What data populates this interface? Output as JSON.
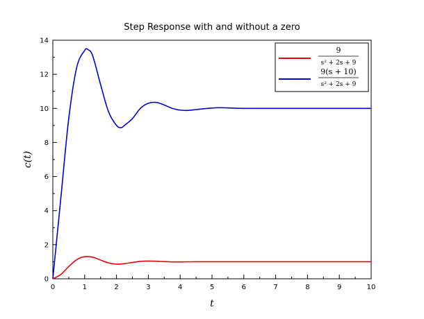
{
  "chart_data": {
    "type": "line",
    "title": "Step Response with and without a zero",
    "xlabel": "t",
    "ylabel": "c(t)",
    "xlim": [
      0,
      10
    ],
    "ylim": [
      0,
      14
    ],
    "xticks": [
      "0",
      "1",
      "2",
      "3",
      "4",
      "5",
      "6",
      "7",
      "8",
      "9",
      "10"
    ],
    "yticks": [
      "0",
      "2",
      "4",
      "6",
      "8",
      "10",
      "12",
      "14"
    ],
    "grid": false,
    "legend_position": "top-right",
    "series": [
      {
        "name": "9 / (s^2 + 2s + 9)",
        "name_numerator": "9",
        "name_denominator": "s² + 2s + 9",
        "color": "#e8000b",
        "x": [
          0,
          0.25,
          0.5,
          0.75,
          1.0,
          1.25,
          1.5,
          1.75,
          2.0,
          2.25,
          2.5,
          2.75,
          3.0,
          3.25,
          3.5,
          3.75,
          4.0,
          4.5,
          5.0,
          5.5,
          6.0,
          7.0,
          8.0,
          9.0,
          10.0
        ],
        "y": [
          0,
          0.25,
          0.72,
          1.12,
          1.3,
          1.27,
          1.1,
          0.93,
          0.86,
          0.89,
          0.96,
          1.02,
          1.04,
          1.03,
          1.01,
          0.99,
          0.99,
          1.0,
          1.0,
          1.0,
          1.0,
          1.0,
          1.0,
          1.0,
          1.0
        ]
      },
      {
        "name": "9(s+10) / (s^2 + 2s + 9)",
        "name_numerator": "9(s + 10)",
        "name_denominator": "s² + 2s + 9",
        "color": "#0000d8",
        "x": [
          0,
          0.25,
          0.5,
          0.75,
          1.0,
          1.1,
          1.25,
          1.5,
          1.75,
          2.0,
          2.15,
          2.25,
          2.5,
          2.75,
          3.0,
          3.25,
          3.5,
          3.75,
          4.0,
          4.25,
          4.5,
          4.75,
          5.0,
          5.25,
          5.5,
          6.0,
          7.0,
          8.0,
          9.0,
          10.0
        ],
        "y": [
          0,
          4.7,
          9.4,
          12.4,
          13.4,
          13.45,
          13.1,
          11.4,
          9.8,
          9.0,
          8.87,
          9.0,
          9.4,
          10.0,
          10.3,
          10.35,
          10.2,
          10.0,
          9.9,
          9.88,
          9.93,
          9.98,
          10.02,
          10.04,
          10.03,
          10.0,
          10.0,
          10.0,
          10.0,
          10.0
        ]
      }
    ]
  }
}
